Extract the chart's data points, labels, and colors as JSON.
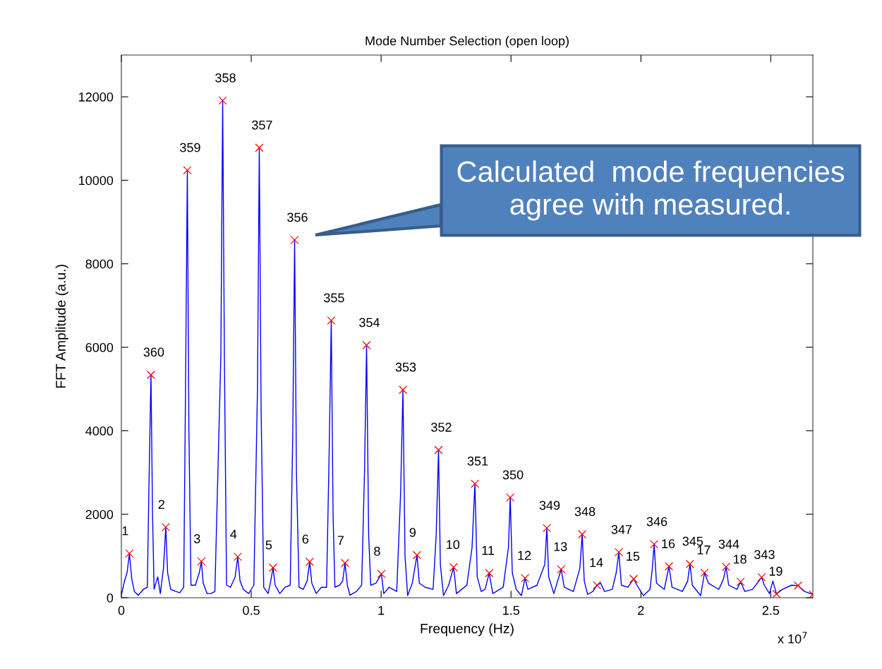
{
  "chart_data": {
    "type": "line",
    "title": "Mode Number Selection (open loop)",
    "xlabel": "Frequency (Hz)",
    "ylabel": "FFT Amplitude (a.u.)",
    "xlim": [
      0,
      2.662
    ],
    "ylim": [
      0,
      13000
    ],
    "xticks": [
      0,
      0.5,
      1,
      1.5,
      2,
      2.5
    ],
    "yticks": [
      0,
      2000,
      4000,
      6000,
      8000,
      10000,
      12000
    ],
    "series": [
      {
        "type": "line",
        "color": "#0000ff",
        "marker": "none",
        "x": [
          0,
          0.01,
          0.022,
          0.031,
          0.04,
          0.05,
          0.065,
          0.085,
          0.1,
          0.106,
          0.114,
          0.12,
          0.126,
          0.14,
          0.15,
          0.162,
          0.171,
          0.178,
          0.19,
          0.21,
          0.225,
          0.24,
          0.247,
          0.254,
          0.26,
          0.268,
          0.285,
          0.3,
          0.308,
          0.315,
          0.33,
          0.345,
          0.36,
          0.383,
          0.39,
          0.397,
          0.405,
          0.42,
          0.438,
          0.448,
          0.457,
          0.47,
          0.49,
          0.51,
          0.524,
          0.531,
          0.538,
          0.548,
          0.565,
          0.575,
          0.584,
          0.592,
          0.61,
          0.63,
          0.65,
          0.66,
          0.667,
          0.674,
          0.684,
          0.7,
          0.715,
          0.725,
          0.733,
          0.75,
          0.77,
          0.79,
          0.8,
          0.808,
          0.815,
          0.822,
          0.84,
          0.852,
          0.861,
          0.87,
          0.88,
          0.905,
          0.925,
          0.936,
          0.944,
          0.952,
          0.96,
          0.98,
          1.001,
          1.01,
          1.03,
          1.06,
          1.075,
          1.084,
          1.092,
          1.102,
          1.12,
          1.138,
          1.147,
          1.17,
          1.2,
          1.212,
          1.221,
          1.228,
          1.24,
          1.26,
          1.279,
          1.29,
          1.33,
          1.35,
          1.361,
          1.37,
          1.385,
          1.4,
          1.416,
          1.43,
          1.47,
          1.49,
          1.497,
          1.505,
          1.52,
          1.54,
          1.554,
          1.565,
          1.6,
          1.63,
          1.638,
          1.645,
          1.665,
          1.693,
          1.705,
          1.74,
          1.765,
          1.774,
          1.782,
          1.795,
          1.815,
          1.831,
          1.845,
          1.86,
          1.89,
          1.905,
          1.915,
          1.925,
          1.95,
          1.972,
          1.985,
          2.01,
          2.035,
          2.044,
          2.051,
          2.06,
          2.09,
          2.108,
          2.12,
          2.16,
          2.18,
          2.189,
          2.198,
          2.23,
          2.245,
          2.26,
          2.3,
          2.318,
          2.328,
          2.338,
          2.37,
          2.384,
          2.4,
          2.43,
          2.465,
          2.475,
          2.495,
          2.508,
          2.522,
          2.545,
          2.58,
          2.605,
          2.63,
          2.662
        ],
        "values": [
          50,
          350,
          600,
          1060,
          450,
          150,
          60,
          200,
          250,
          2600,
          5340,
          2000,
          200,
          500,
          100,
          700,
          1690,
          600,
          200,
          150,
          120,
          250,
          5000,
          10240,
          4000,
          300,
          300,
          600,
          870,
          350,
          100,
          100,
          150,
          5800,
          11910,
          5500,
          300,
          250,
          500,
          980,
          400,
          200,
          100,
          300,
          5000,
          10780,
          4500,
          250,
          100,
          400,
          720,
          300,
          100,
          250,
          300,
          4000,
          8570,
          3000,
          250,
          200,
          400,
          860,
          350,
          100,
          250,
          250,
          3500,
          6640,
          2000,
          250,
          300,
          400,
          830,
          300,
          60,
          150,
          300,
          3000,
          6050,
          1500,
          300,
          350,
          570,
          100,
          250,
          150,
          2500,
          4980,
          1000,
          50,
          350,
          1020,
          350,
          250,
          200,
          1500,
          3540,
          800,
          50,
          300,
          730,
          100,
          300,
          1200,
          2730,
          500,
          150,
          200,
          590,
          100,
          250,
          1200,
          2400,
          600,
          200,
          50,
          470,
          200,
          300,
          800,
          1670,
          500,
          100,
          680,
          250,
          150,
          700,
          1520,
          400,
          80,
          150,
          300,
          350,
          150,
          200,
          600,
          1090,
          300,
          250,
          450,
          300,
          50,
          200,
          700,
          1280,
          350,
          200,
          750,
          250,
          150,
          400,
          810,
          300,
          50,
          600,
          350,
          200,
          450,
          740,
          300,
          200,
          380,
          150,
          200,
          490,
          300,
          100,
          400,
          90,
          200,
          300,
          290,
          150,
          80
        ]
      },
      {
        "type": "scatter",
        "color": "#ff0000",
        "marker": "cross",
        "x": [
          0.031,
          0.114,
          0.171,
          0.254,
          0.308,
          0.39,
          0.448,
          0.531,
          0.584,
          0.667,
          0.725,
          0.808,
          0.861,
          0.944,
          1.001,
          1.084,
          1.138,
          1.221,
          1.279,
          1.361,
          1.416,
          1.497,
          1.554,
          1.638,
          1.693,
          1.774,
          1.831,
          1.915,
          1.972,
          2.051,
          2.108,
          2.189,
          2.245,
          2.328,
          2.384,
          2.465,
          2.522,
          2.605,
          2.662
        ],
        "values": [
          1060,
          5340,
          1690,
          10240,
          870,
          11910,
          980,
          10780,
          720,
          8570,
          860,
          6640,
          830,
          6050,
          570,
          4980,
          1020,
          3540,
          730,
          2730,
          590,
          2400,
          470,
          1670,
          680,
          1520,
          300,
          1090,
          450,
          1280,
          750,
          810,
          600,
          740,
          380,
          490,
          90,
          290,
          80
        ]
      }
    ],
    "annotations": [
      "Calculated  mode frequencies\nagree with measured.",
      "x 10$^{7}$",
      {
        "text": "1",
        "x": 0.031,
        "y": 1060
      },
      {
        "text": "360",
        "x": 0.114,
        "y": 5340
      },
      {
        "text": "2",
        "x": 0.171,
        "y": 1690
      },
      {
        "text": "359",
        "x": 0.254,
        "y": 10240
      },
      {
        "text": "3",
        "x": 0.308,
        "y": 870
      },
      {
        "text": "358",
        "x": 0.39,
        "y": 11910
      },
      {
        "text": "4",
        "x": 0.448,
        "y": 980
      },
      {
        "text": "357",
        "x": 0.531,
        "y": 10780
      },
      {
        "text": "5",
        "x": 0.584,
        "y": 720
      },
      {
        "text": "356",
        "x": 0.667,
        "y": 8570
      },
      {
        "text": "6",
        "x": 0.725,
        "y": 860
      },
      {
        "text": "355",
        "x": 0.808,
        "y": 6640
      },
      {
        "text": "7",
        "x": 0.861,
        "y": 830
      },
      {
        "text": "354",
        "x": 0.944,
        "y": 6050
      },
      {
        "text": "8",
        "x": 1.001,
        "y": 570
      },
      {
        "text": "353",
        "x": 1.084,
        "y": 4980
      },
      {
        "text": "9",
        "x": 1.138,
        "y": 1020
      },
      {
        "text": "352",
        "x": 1.221,
        "y": 3540
      },
      {
        "text": "10",
        "x": 1.279,
        "y": 730
      },
      {
        "text": "351",
        "x": 1.361,
        "y": 2730
      },
      {
        "text": "11",
        "x": 1.416,
        "y": 590
      },
      {
        "text": "350",
        "x": 1.497,
        "y": 2400
      },
      {
        "text": "12",
        "x": 1.554,
        "y": 470
      },
      {
        "text": "349",
        "x": 1.638,
        "y": 1670
      },
      {
        "text": "13",
        "x": 1.693,
        "y": 680
      },
      {
        "text": "348",
        "x": 1.774,
        "y": 1520
      },
      {
        "text": "14",
        "x": 1.831,
        "y": 300
      },
      {
        "text": "347",
        "x": 1.915,
        "y": 1090
      },
      {
        "text": "15",
        "x": 1.972,
        "y": 450
      },
      {
        "text": "346",
        "x": 2.051,
        "y": 1280
      },
      {
        "text": "16",
        "x": 2.108,
        "y": 750
      },
      {
        "text": "345",
        "x": 2.189,
        "y": 810
      },
      {
        "text": "17",
        "x": 2.245,
        "y": 600
      },
      {
        "text": "344",
        "x": 2.328,
        "y": 740
      },
      {
        "text": "18",
        "x": 2.384,
        "y": 380
      },
      {
        "text": "343",
        "x": 2.465,
        "y": 490
      },
      {
        "text": "19",
        "x": 2.522,
        "y": 90
      }
    ]
  }
}
